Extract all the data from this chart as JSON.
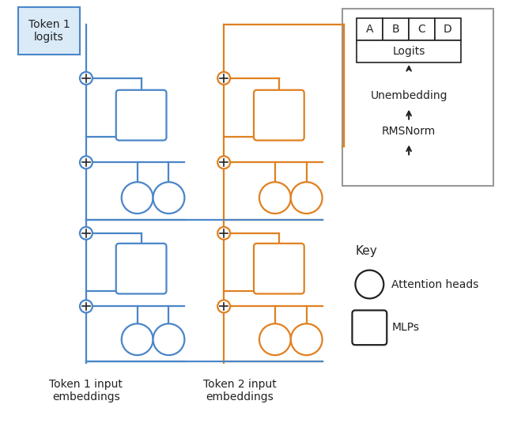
{
  "blue_color": "#4a86c8",
  "orange_color": "#e08020",
  "gray_color": "#999999",
  "dark_color": "#222222",
  "line_width": 1.6,
  "fig_width": 6.4,
  "fig_height": 5.45,
  "title_text": "Token 1\nlogits",
  "token1_label": "Token 1 input\nembeddings",
  "token2_label": "Token 2 input\nembeddings",
  "logits_box_label": "Logits",
  "logits_abcd": [
    "A",
    "B",
    "C",
    "D"
  ],
  "unembedding_label": "Unembedding",
  "rmsnorm_label": "RMSNorm",
  "key_label": "Key",
  "attn_label": "Attention heads",
  "mlp_label": "MLPs"
}
